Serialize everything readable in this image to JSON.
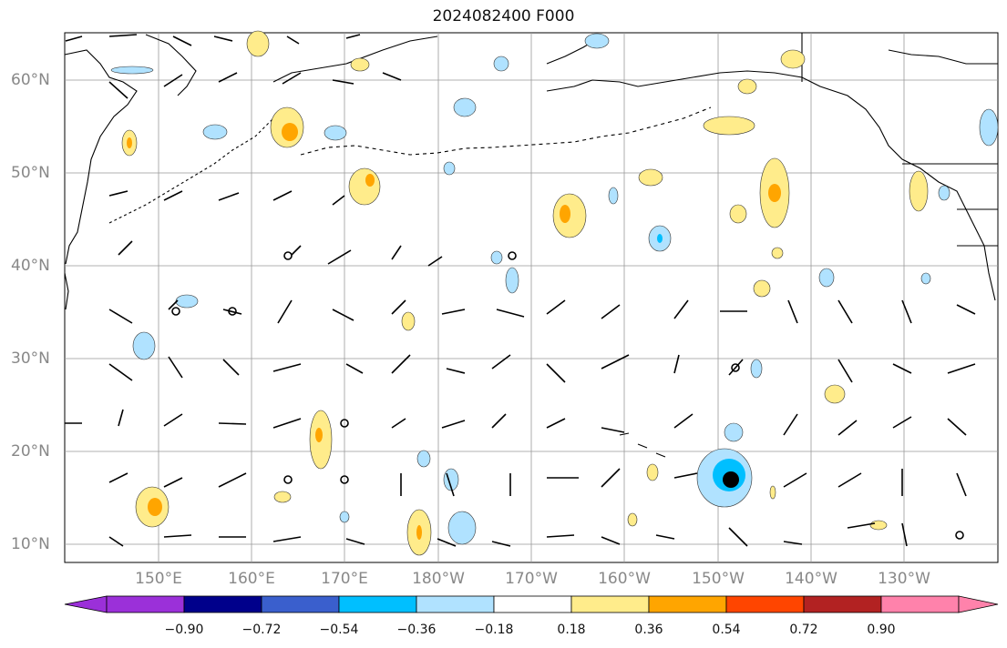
{
  "title": "2024082400 F000",
  "lat_labels": [
    "60°N",
    "50°N",
    "40°N",
    "30°N",
    "20°N",
    "10°N"
  ],
  "lon_labels": [
    "150°E",
    "160°E",
    "170°E",
    "180°W",
    "170°W",
    "160°W",
    "150°W",
    "140°W",
    "130°W"
  ],
  "colorbar": {
    "ticks": [
      "−0.90",
      "−0.72",
      "−0.54",
      "−0.36",
      "−0.18",
      "0.18",
      "0.36",
      "0.54",
      "0.72",
      "0.90"
    ],
    "colors": [
      "#9b30d9",
      "#00008b",
      "#3a5fcd",
      "#00bfff",
      "#b0e2ff",
      "#ffffff",
      "#ffec8b",
      "#ffa500",
      "#ff4500",
      "#b22222",
      "#ff82ab"
    ]
  },
  "colors": {
    "land_outline": "#000000",
    "grid": "#999999",
    "positive_light": "#ffec8b",
    "positive_mid": "#ffa500",
    "negative_light": "#b0e2ff",
    "negative_mid": "#00bfff"
  },
  "symbols": {
    "large_dot": "large black dot near 17°N 149°W",
    "calm_circles": "small open circles for calm winds"
  }
}
